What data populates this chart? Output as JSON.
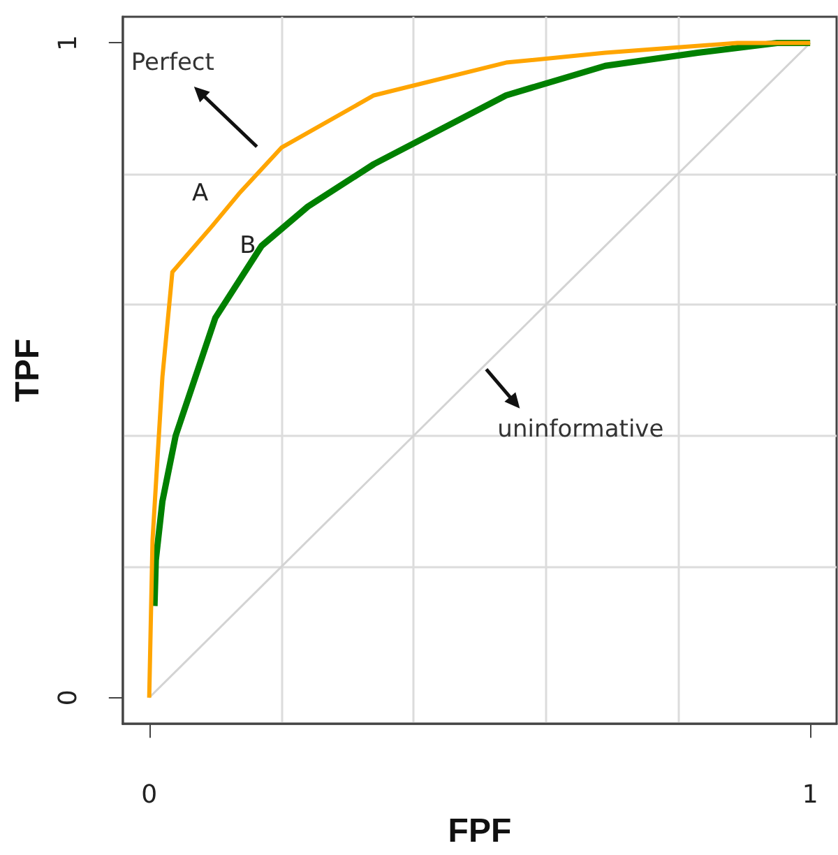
{
  "chart_data": {
    "type": "line",
    "xlabel": "FPF",
    "ylabel": "TPF",
    "xlim": [
      -0.04,
      1.04
    ],
    "ylim": [
      -0.04,
      1.04
    ],
    "xticks": [
      0,
      {
        "value": 0.2,
        "label": null
      },
      {
        "value": 0.4,
        "label": null
      },
      {
        "value": 0.6,
        "label": null
      },
      {
        "value": 0.8,
        "label": null
      },
      1
    ],
    "yticks": [
      0,
      {
        "value": 0.2,
        "label": null
      },
      {
        "value": 0.4,
        "label": null
      },
      {
        "value": 0.6,
        "label": null
      },
      {
        "value": 0.8,
        "label": null
      },
      1
    ],
    "grid": true,
    "legend": false,
    "marker": "none",
    "line_style": "solid",
    "series": [
      {
        "name": "A",
        "color": "#ffa500",
        "x": [
          0,
          0.005,
          0.02,
          0.035,
          0.095,
          0.136,
          0.2,
          0.34,
          0.54,
          0.69,
          0.89,
          1
        ],
        "values": [
          0,
          0.24,
          0.49,
          0.65,
          0.72,
          0.77,
          0.84,
          0.92,
          0.97,
          0.985,
          1,
          1
        ]
      },
      {
        "name": "B",
        "color": "#008000",
        "x": [
          0.008,
          0.01,
          0.02,
          0.04,
          0.07,
          0.1,
          0.17,
          0.24,
          0.34,
          0.54,
          0.69,
          0.83,
          0.95,
          1
        ],
        "values": [
          0.14,
          0.21,
          0.3,
          0.4,
          0.49,
          0.58,
          0.69,
          0.75,
          0.815,
          0.92,
          0.965,
          0.985,
          1,
          1
        ]
      },
      {
        "color": "#d3d3d3",
        "x": [
          0,
          1
        ],
        "values": [
          0,
          1
        ]
      }
    ],
    "annotations": [
      "Perfect",
      {
        "text": "uninformative",
        "x": 0.51,
        "y": 0.51
      }
    ]
  }
}
